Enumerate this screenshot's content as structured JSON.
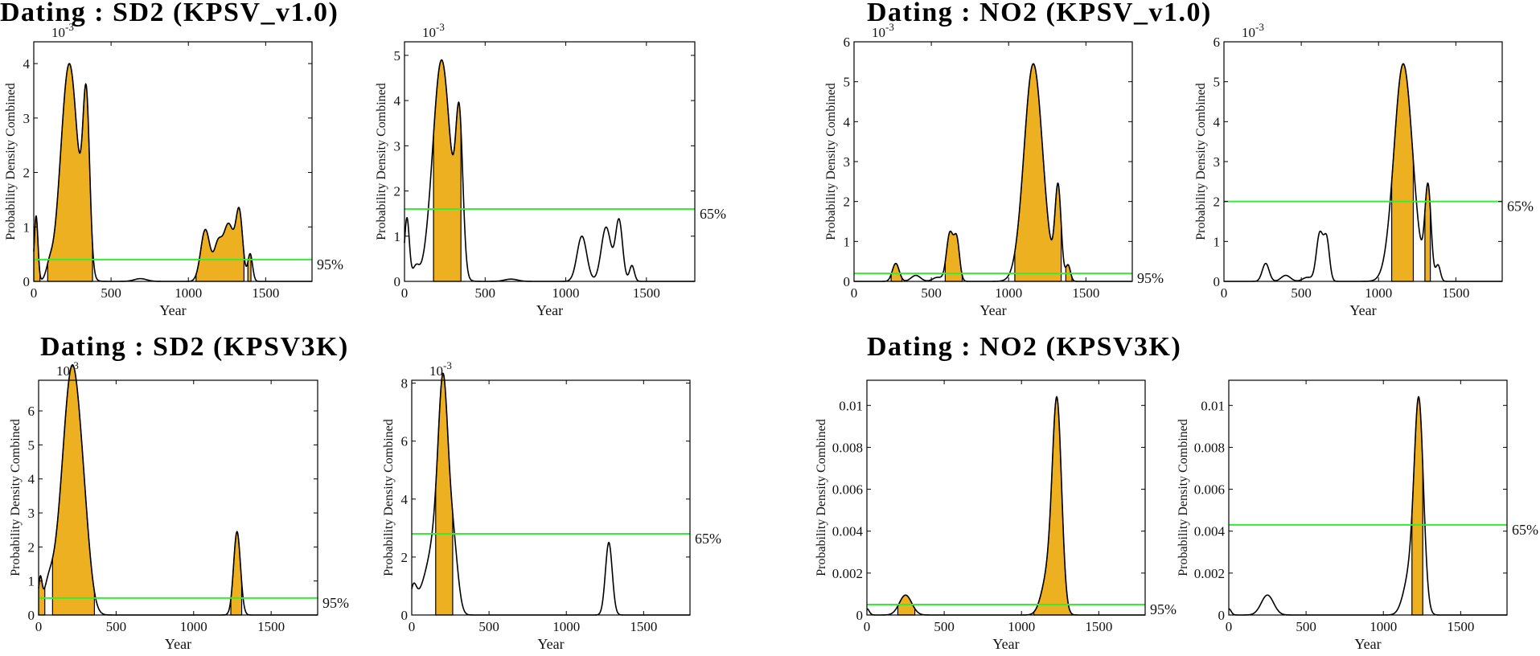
{
  "colors": {
    "fill": "#EDB021",
    "line": "#000000",
    "threshold": "#33EE33",
    "frame": "#000000"
  },
  "panel_titles": [
    "Dating : SD2 (KPSV_v1.0)",
    "Dating : NO2 (KPSV_v1.0)",
    "Dating : SD2 (KPSV3K)",
    "Dating : NO2 (KPSV3K)"
  ],
  "chart_data": [
    {
      "id": "sd2-v1-95",
      "type": "area",
      "group": 0,
      "col": 0,
      "xlabel": "Year",
      "ylabel": "Probability Density Combined",
      "xlim": [
        0,
        1800
      ],
      "ylim": [
        0,
        4.4
      ],
      "yscale_label": "10-3",
      "xticks": [
        0,
        500,
        1000,
        1500
      ],
      "yticks": [
        0,
        1,
        2,
        3,
        4
      ],
      "threshold": 0.4,
      "threshold_label": "95%",
      "peaks": [
        [
          15,
          1.2,
          12
        ],
        [
          100,
          0.2,
          20
        ],
        [
          230,
          4.0,
          55
        ],
        [
          340,
          3.05,
          22
        ],
        [
          690,
          0.05,
          40
        ],
        [
          1110,
          0.95,
          30
        ],
        [
          1190,
          0.6,
          25
        ],
        [
          1260,
          1.05,
          35
        ],
        [
          1330,
          1.2,
          22
        ],
        [
          1400,
          0.5,
          15
        ]
      ],
      "bands": [
        [
          0,
          40
        ],
        [
          90,
          380
        ],
        [
          1050,
          1360
        ],
        [
          1385,
          1405
        ]
      ]
    },
    {
      "id": "sd2-v1-65",
      "type": "area",
      "group": 0,
      "col": 1,
      "xlabel": "Year",
      "ylabel": "Probability Density Combined",
      "xlim": [
        0,
        1800
      ],
      "ylim": [
        0,
        5.3
      ],
      "yscale_label": "10-3",
      "xticks": [
        0,
        500,
        1000,
        1500
      ],
      "yticks": [
        0,
        1,
        2,
        3,
        4,
        5
      ],
      "threshold": 1.6,
      "threshold_label": "65%",
      "peaks": [
        [
          15,
          1.4,
          15
        ],
        [
          70,
          0.3,
          20
        ],
        [
          230,
          4.9,
          55
        ],
        [
          340,
          3.25,
          22
        ],
        [
          660,
          0.05,
          40
        ],
        [
          1100,
          1.0,
          30
        ],
        [
          1250,
          1.2,
          30
        ],
        [
          1330,
          1.35,
          22
        ],
        [
          1410,
          0.35,
          15
        ]
      ],
      "bands": [
        [
          180,
          350
        ]
      ]
    },
    {
      "id": "no2-v1-95",
      "type": "area",
      "group": 1,
      "col": 0,
      "xlabel": "Year",
      "ylabel": "Probability Density Combined",
      "xlim": [
        0,
        1800
      ],
      "ylim": [
        0,
        6
      ],
      "yscale_label": "10-3",
      "xticks": [
        0,
        500,
        1000,
        1500
      ],
      "yticks": [
        0,
        1,
        2,
        3,
        4,
        5,
        6
      ],
      "threshold": 0.2,
      "threshold_label": "95%",
      "peaks": [
        [
          270,
          0.45,
          22
        ],
        [
          400,
          0.15,
          30
        ],
        [
          540,
          0.1,
          30
        ],
        [
          620,
          1.2,
          22
        ],
        [
          665,
          1.0,
          18
        ],
        [
          1160,
          5.45,
          60
        ],
        [
          1320,
          2.3,
          20
        ],
        [
          1385,
          0.4,
          15
        ]
      ],
      "bands": [
        [
          240,
          310
        ],
        [
          590,
          700
        ],
        [
          1040,
          1340
        ],
        [
          1370,
          1410
        ]
      ]
    },
    {
      "id": "no2-v1-65",
      "type": "area",
      "group": 1,
      "col": 1,
      "xlabel": "Year",
      "ylabel": "Probability Density Combined",
      "xlim": [
        0,
        1800
      ],
      "ylim": [
        0,
        6
      ],
      "yscale_label": "10-3",
      "xticks": [
        0,
        500,
        1000,
        1500
      ],
      "yticks": [
        0,
        1,
        2,
        3,
        4,
        5,
        6
      ],
      "threshold": 2.0,
      "threshold_label": "65%",
      "peaks": [
        [
          270,
          0.45,
          22
        ],
        [
          400,
          0.15,
          30
        ],
        [
          540,
          0.1,
          30
        ],
        [
          620,
          1.2,
          22
        ],
        [
          665,
          1.0,
          18
        ],
        [
          1160,
          5.45,
          60
        ],
        [
          1320,
          2.3,
          20
        ],
        [
          1385,
          0.4,
          15
        ]
      ],
      "bands": [
        [
          1085,
          1225
        ],
        [
          1300,
          1335
        ]
      ]
    },
    {
      "id": "sd2-3k-95",
      "type": "area",
      "group": 2,
      "col": 0,
      "xlabel": "Year",
      "ylabel": "Probability Density Combined",
      "xlim": [
        0,
        1800
      ],
      "ylim": [
        0,
        6.9
      ],
      "yscale_label": "10-3",
      "xticks": [
        0,
        500,
        1000,
        1500
      ],
      "yticks": [
        0,
        1,
        2,
        3,
        4,
        5,
        6
      ],
      "threshold": 0.5,
      "threshold_label": "95%",
      "peaks": [
        [
          10,
          0.9,
          12
        ],
        [
          60,
          0.6,
          30
        ],
        [
          160,
          2.0,
          60
        ],
        [
          225,
          6.0,
          55
        ],
        [
          300,
          1.2,
          40
        ],
        [
          1280,
          2.45,
          22
        ]
      ],
      "bands": [
        [
          0,
          40
        ],
        [
          90,
          360
        ],
        [
          1240,
          1310
        ]
      ]
    },
    {
      "id": "sd2-3k-65",
      "type": "area",
      "group": 2,
      "col": 1,
      "xlabel": "Year",
      "ylabel": "Probability Density Combined",
      "xlim": [
        0,
        1800
      ],
      "ylim": [
        0,
        8.1
      ],
      "yscale_label": "10-3",
      "xticks": [
        0,
        500,
        1000,
        1500
      ],
      "yticks": [
        0,
        2,
        4,
        6,
        8
      ],
      "threshold": 2.8,
      "threshold_label": "65%",
      "peaks": [
        [
          10,
          0.8,
          20
        ],
        [
          60,
          0.5,
          40
        ],
        [
          150,
          2.4,
          50
        ],
        [
          205,
          6.8,
          32
        ],
        [
          270,
          2.2,
          30
        ],
        [
          1275,
          2.5,
          22
        ]
      ],
      "bands": [
        [
          155,
          265
        ]
      ]
    },
    {
      "id": "no2-3k-95",
      "type": "area",
      "group": 3,
      "col": 0,
      "xlabel": "Year",
      "ylabel": "Probability Density Combined",
      "xlim": [
        0,
        1800
      ],
      "ylim": [
        0,
        0.0112
      ],
      "yscale_label": "",
      "xticks": [
        0,
        500,
        1000,
        1500
      ],
      "yticks": [
        0,
        0.002,
        0.004,
        0.006,
        0.008,
        0.01
      ],
      "threshold": 0.0005,
      "threshold_label": "95%",
      "peaks": [
        [
          0,
          0.0003,
          15
        ],
        [
          250,
          0.00095,
          40
        ],
        [
          1170,
          0.0018,
          40
        ],
        [
          1230,
          0.0098,
          30
        ]
      ],
      "bands": [
        [
          200,
          310
        ],
        [
          1080,
          1340
        ]
      ]
    },
    {
      "id": "no2-3k-65",
      "type": "area",
      "group": 3,
      "col": 1,
      "xlabel": "Year",
      "ylabel": "Probability Density Combined",
      "xlim": [
        0,
        1800
      ],
      "ylim": [
        0,
        0.0112
      ],
      "yscale_label": "",
      "xticks": [
        0,
        500,
        1000,
        1500
      ],
      "yticks": [
        0,
        0.002,
        0.004,
        0.006,
        0.008,
        0.01
      ],
      "threshold": 0.0043,
      "threshold_label": "65%",
      "peaks": [
        [
          0,
          0.0003,
          15
        ],
        [
          250,
          0.00095,
          40
        ],
        [
          1170,
          0.0018,
          40
        ],
        [
          1230,
          0.0098,
          30
        ]
      ],
      "bands": [
        [
          1185,
          1255
        ]
      ]
    }
  ]
}
